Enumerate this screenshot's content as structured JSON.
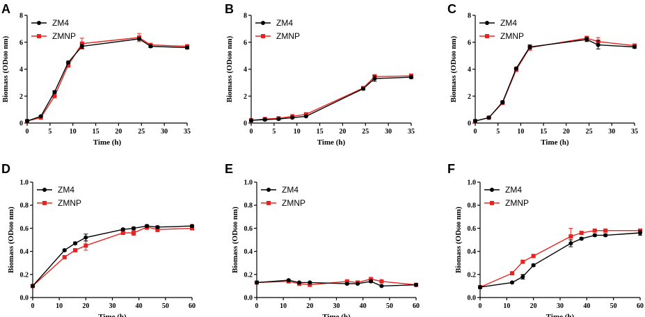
{
  "figure": {
    "background": "#ffffff"
  },
  "colors": {
    "ZM4": "#000000",
    "ZMNP": "#e8231f"
  },
  "chart_data": [
    {
      "id": "A",
      "letter": "A",
      "type": "line",
      "xlabel": "Time (h)",
      "ylabel": "Biomass (OD600 nm)",
      "xlim": [
        0,
        35
      ],
      "ylim": [
        0,
        8
      ],
      "xticks": [
        "0",
        "5",
        "10",
        "15",
        "20",
        "25",
        "30",
        "35"
      ],
      "yticks": [
        "0",
        "2",
        "4",
        "6",
        "8"
      ],
      "x": [
        0,
        3,
        6,
        9,
        12,
        24.5,
        27,
        35
      ],
      "series": [
        {
          "name": "ZM4",
          "values": [
            0.15,
            0.5,
            2.3,
            4.5,
            5.7,
            6.25,
            5.7,
            5.6
          ],
          "errors": [
            0.05,
            0.05,
            0.1,
            0.1,
            0.15,
            0.1,
            0.1,
            0.1
          ]
        },
        {
          "name": "ZMNP",
          "values": [
            0.15,
            0.4,
            2.0,
            4.3,
            5.9,
            6.35,
            5.8,
            5.7
          ],
          "errors": [
            0.05,
            0.05,
            0.1,
            0.15,
            0.4,
            0.3,
            0.1,
            0.1
          ]
        }
      ],
      "legend": {
        "placement": "top-left",
        "labels": [
          "ZM4",
          "ZMNP"
        ]
      }
    },
    {
      "id": "B",
      "letter": "B",
      "type": "line",
      "xlabel": "Time (h)",
      "ylabel": "Biomass (OD600 nm)",
      "xlim": [
        0,
        35
      ],
      "ylim": [
        0,
        8
      ],
      "xticks": [
        "0",
        "5",
        "10",
        "15",
        "20",
        "25",
        "30",
        "35"
      ],
      "yticks": [
        "0",
        "2",
        "4",
        "6",
        "8"
      ],
      "x": [
        0,
        3,
        6,
        9,
        12,
        24.5,
        27,
        35
      ],
      "series": [
        {
          "name": "ZM4",
          "values": [
            0.2,
            0.25,
            0.3,
            0.4,
            0.5,
            2.55,
            3.3,
            3.4
          ],
          "errors": [
            0.05,
            0.05,
            0.05,
            0.05,
            0.05,
            0.1,
            0.2,
            0.1
          ]
        },
        {
          "name": "ZMNP",
          "values": [
            0.2,
            0.3,
            0.35,
            0.5,
            0.65,
            2.6,
            3.45,
            3.5
          ],
          "errors": [
            0.05,
            0.05,
            0.05,
            0.05,
            0.1,
            0.1,
            0.15,
            0.15
          ]
        }
      ],
      "legend": {
        "placement": "top-left",
        "labels": [
          "ZM4",
          "ZMNP"
        ]
      }
    },
    {
      "id": "C",
      "letter": "C",
      "type": "line",
      "xlabel": "Time (h)",
      "ylabel": "Biomass (OD600 nm)",
      "xlim": [
        0,
        35
      ],
      "ylim": [
        0,
        8
      ],
      "xticks": [
        "0",
        "5",
        "10",
        "15",
        "20",
        "25",
        "30",
        "35"
      ],
      "yticks": [
        "0",
        "2",
        "4",
        "6",
        "8"
      ],
      "x": [
        0,
        3,
        6,
        9,
        12,
        24.5,
        27,
        35
      ],
      "series": [
        {
          "name": "ZM4",
          "values": [
            0.15,
            0.4,
            1.55,
            4.05,
            5.65,
            6.2,
            5.8,
            5.65
          ],
          "errors": [
            0.05,
            0.05,
            0.1,
            0.1,
            0.15,
            0.15,
            0.3,
            0.1
          ]
        },
        {
          "name": "ZMNP",
          "values": [
            0.15,
            0.4,
            1.5,
            3.95,
            5.6,
            6.3,
            6.05,
            5.75
          ],
          "errors": [
            0.05,
            0.05,
            0.1,
            0.1,
            0.2,
            0.15,
            0.3,
            0.1
          ]
        }
      ],
      "legend": {
        "placement": "top-left",
        "labels": [
          "ZM4",
          "ZMNP"
        ]
      }
    },
    {
      "id": "D",
      "letter": "D",
      "type": "line",
      "xlabel": "Time (h)",
      "ylabel": "Biomass (OD600 nm)",
      "xlim": [
        0,
        60
      ],
      "ylim": [
        0,
        1.0
      ],
      "xticks": [
        "0",
        "10",
        "20",
        "30",
        "40",
        "50",
        "60"
      ],
      "yticks": [
        "0.0",
        "0.2",
        "0.4",
        "0.6",
        "0.8",
        "1.0"
      ],
      "x": [
        0,
        12,
        16,
        20,
        34,
        38,
        43,
        47,
        60
      ],
      "series": [
        {
          "name": "ZM4",
          "values": [
            0.1,
            0.41,
            0.47,
            0.52,
            0.59,
            0.6,
            0.62,
            0.61,
            0.62
          ],
          "errors": [
            0.01,
            0.01,
            0.01,
            0.03,
            0.01,
            0.01,
            0.01,
            0.01,
            0.01
          ]
        },
        {
          "name": "ZMNP",
          "values": [
            0.1,
            0.35,
            0.41,
            0.45,
            0.56,
            0.56,
            0.61,
            0.59,
            0.6
          ],
          "errors": [
            0.01,
            0.01,
            0.01,
            0.04,
            0.01,
            0.02,
            0.02,
            0.02,
            0.01
          ]
        }
      ],
      "legend": {
        "placement": "top-left",
        "labels": [
          "ZM4",
          "ZMNP"
        ]
      }
    },
    {
      "id": "E",
      "letter": "E",
      "type": "line",
      "xlabel": "Time (h)",
      "ylabel": "Biomass (OD600 nm)",
      "xlim": [
        0,
        60
      ],
      "ylim": [
        0,
        1.0
      ],
      "xticks": [
        "0",
        "10",
        "20",
        "30",
        "40",
        "50",
        "60"
      ],
      "yticks": [
        "0.0",
        "0.2",
        "0.4",
        "0.6",
        "0.8",
        "1.0"
      ],
      "x": [
        0,
        12,
        16,
        20,
        34,
        38,
        43,
        47,
        60
      ],
      "series": [
        {
          "name": "ZM4",
          "values": [
            0.13,
            0.15,
            0.13,
            0.13,
            0.12,
            0.12,
            0.14,
            0.1,
            0.11
          ],
          "errors": [
            0.005,
            0.005,
            0.005,
            0.005,
            0.005,
            0.005,
            0.01,
            0.005,
            0.005
          ]
        },
        {
          "name": "ZMNP",
          "values": [
            0.13,
            0.14,
            0.12,
            0.11,
            0.14,
            0.13,
            0.16,
            0.14,
            0.11
          ],
          "errors": [
            0.005,
            0.005,
            0.005,
            0.005,
            0.005,
            0.005,
            0.01,
            0.005,
            0.005
          ]
        }
      ],
      "legend": {
        "placement": "top-left",
        "labels": [
          "ZM4",
          "ZMNP"
        ]
      }
    },
    {
      "id": "F",
      "letter": "F",
      "type": "line",
      "xlabel": "Time (h)",
      "ylabel": "Biomass (OD600 nm)",
      "xlim": [
        0,
        60
      ],
      "ylim": [
        0,
        1.0
      ],
      "xticks": [
        "0",
        "10",
        "20",
        "30",
        "40",
        "50",
        "60"
      ],
      "yticks": [
        "0.0",
        "0.2",
        "0.4",
        "0.6",
        "0.8",
        "1.0"
      ],
      "x": [
        0,
        12,
        16,
        20,
        34,
        38,
        43,
        47,
        60
      ],
      "series": [
        {
          "name": "ZM4",
          "values": [
            0.09,
            0.13,
            0.18,
            0.28,
            0.47,
            0.51,
            0.54,
            0.54,
            0.56
          ],
          "errors": [
            0.005,
            0.005,
            0.02,
            0.01,
            0.03,
            0.01,
            0.01,
            0.01,
            0.02
          ]
        },
        {
          "name": "ZMNP",
          "values": [
            0.09,
            0.21,
            0.31,
            0.36,
            0.53,
            0.56,
            0.58,
            0.58,
            0.58
          ],
          "errors": [
            0.005,
            0.01,
            0.01,
            0.01,
            0.07,
            0.01,
            0.01,
            0.01,
            0.01
          ]
        }
      ],
      "legend": {
        "placement": "top-left",
        "labels": [
          "ZM4",
          "ZMNP"
        ]
      }
    }
  ]
}
